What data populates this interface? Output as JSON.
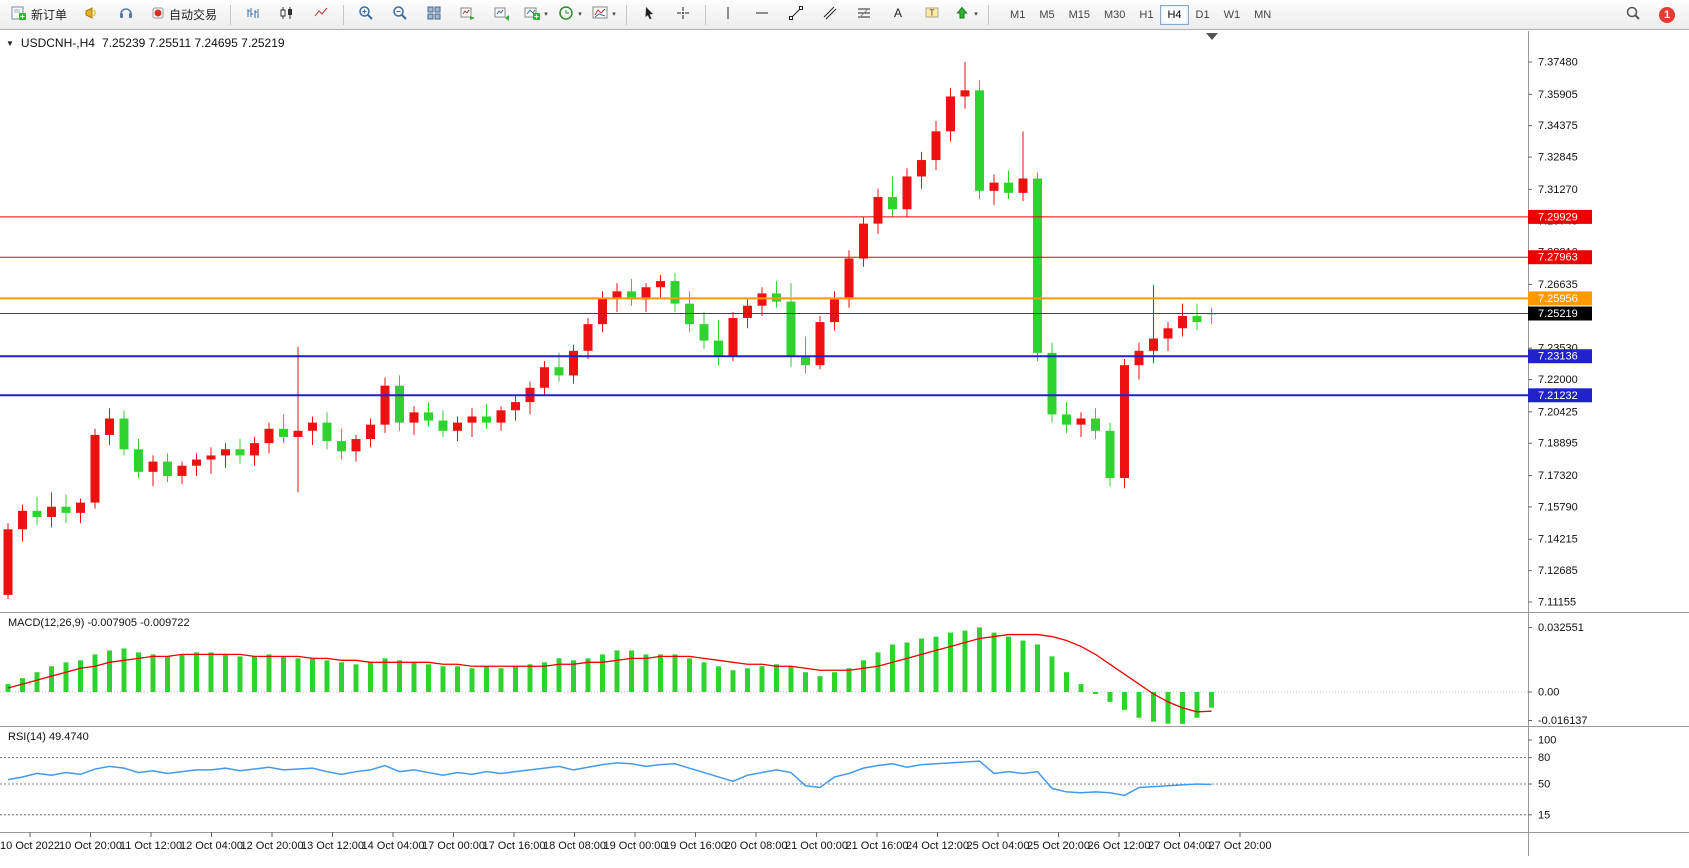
{
  "glyphs": {
    "caret": "▾",
    "one_click_arrow": "▼"
  },
  "toolbar": {
    "new_order_label": "新订单",
    "autotrading_label": "自动交易",
    "timeframes": [
      "M1",
      "M5",
      "M15",
      "M30",
      "H1",
      "H4",
      "D1",
      "W1",
      "MN"
    ],
    "active_timeframe": "H4",
    "notification_badge": "1"
  },
  "chart_window": {
    "title": "USDCNH-,H4",
    "ohlc_text": "7.25239 7.25511 7.24695 7.25219"
  },
  "chart_data": {
    "type": "candlestick",
    "symbol": "USDCNH-",
    "period": "H4",
    "ohlc_current": {
      "open": 7.25239,
      "high": 7.25511,
      "low": 7.24695,
      "close": 7.25219
    },
    "y_range": [
      7.11155,
      7.3748
    ],
    "up_color": "#ee1111",
    "down_color": "#2fd32f",
    "price_axis_labels": [
      "7.37480",
      "7.35905",
      "7.34375",
      "7.32845",
      "7.31270",
      "7.29740",
      "7.28210",
      "7.26635",
      "7.25105",
      "7.23530",
      "7.22000",
      "7.20425",
      "7.18895",
      "7.17320",
      "7.15790",
      "7.14215",
      "7.12685",
      "7.11155"
    ],
    "candles": [
      [
        7.115,
        7.15,
        7.113,
        7.147
      ],
      [
        7.147,
        7.159,
        7.141,
        7.156
      ],
      [
        7.156,
        7.163,
        7.149,
        7.153
      ],
      [
        7.153,
        7.165,
        7.148,
        7.158
      ],
      [
        7.158,
        7.164,
        7.15,
        7.155
      ],
      [
        7.155,
        7.162,
        7.15,
        7.16
      ],
      [
        7.16,
        7.196,
        7.157,
        7.193
      ],
      [
        7.193,
        7.206,
        7.188,
        7.201
      ],
      [
        7.201,
        7.205,
        7.183,
        7.186
      ],
      [
        7.186,
        7.191,
        7.172,
        7.175
      ],
      [
        7.175,
        7.183,
        7.168,
        7.18
      ],
      [
        7.18,
        7.184,
        7.17,
        7.173
      ],
      [
        7.173,
        7.18,
        7.169,
        7.178
      ],
      [
        7.178,
        7.184,
        7.173,
        7.181
      ],
      [
        7.181,
        7.187,
        7.174,
        7.183
      ],
      [
        7.183,
        7.189,
        7.177,
        7.186
      ],
      [
        7.186,
        7.191,
        7.179,
        7.183
      ],
      [
        7.183,
        7.192,
        7.178,
        7.189
      ],
      [
        7.189,
        7.199,
        7.184,
        7.196
      ],
      [
        7.196,
        7.203,
        7.189,
        7.192
      ],
      [
        7.192,
        7.236,
        7.165,
        7.195
      ],
      [
        7.195,
        7.202,
        7.188,
        7.199
      ],
      [
        7.199,
        7.204,
        7.186,
        7.19
      ],
      [
        7.19,
        7.196,
        7.181,
        7.185
      ],
      [
        7.185,
        7.193,
        7.18,
        7.191
      ],
      [
        7.191,
        7.201,
        7.187,
        7.198
      ],
      [
        7.198,
        7.221,
        7.194,
        7.217
      ],
      [
        7.217,
        7.222,
        7.195,
        7.199
      ],
      [
        7.199,
        7.207,
        7.193,
        7.204
      ],
      [
        7.204,
        7.209,
        7.197,
        7.2
      ],
      [
        7.2,
        7.205,
        7.192,
        7.195
      ],
      [
        7.195,
        7.202,
        7.19,
        7.199
      ],
      [
        7.199,
        7.206,
        7.192,
        7.202
      ],
      [
        7.202,
        7.208,
        7.196,
        7.199
      ],
      [
        7.199,
        7.207,
        7.195,
        7.205
      ],
      [
        7.205,
        7.212,
        7.2,
        7.209
      ],
      [
        7.209,
        7.219,
        7.203,
        7.216
      ],
      [
        7.216,
        7.229,
        7.212,
        7.226
      ],
      [
        7.226,
        7.233,
        7.219,
        7.222
      ],
      [
        7.222,
        7.237,
        7.218,
        7.234
      ],
      [
        7.234,
        7.25,
        7.23,
        7.247
      ],
      [
        7.247,
        7.263,
        7.243,
        7.26
      ],
      [
        7.26,
        7.267,
        7.253,
        7.263
      ],
      [
        7.263,
        7.269,
        7.256,
        7.259
      ],
      [
        7.259,
        7.267,
        7.253,
        7.265
      ],
      [
        7.265,
        7.271,
        7.259,
        7.268
      ],
      [
        7.268,
        7.272,
        7.253,
        7.257
      ],
      [
        7.257,
        7.263,
        7.243,
        7.247
      ],
      [
        7.247,
        7.253,
        7.235,
        7.239
      ],
      [
        7.239,
        7.249,
        7.227,
        7.231
      ],
      [
        7.231,
        7.253,
        7.229,
        7.25
      ],
      [
        7.25,
        7.259,
        7.245,
        7.256
      ],
      [
        7.256,
        7.265,
        7.251,
        7.262
      ],
      [
        7.262,
        7.268,
        7.255,
        7.258
      ],
      [
        7.258,
        7.267,
        7.226,
        7.231
      ],
      [
        7.231,
        7.241,
        7.223,
        7.227
      ],
      [
        7.227,
        7.251,
        7.225,
        7.248
      ],
      [
        7.248,
        7.263,
        7.244,
        7.259
      ],
      [
        7.259,
        7.283,
        7.255,
        7.279
      ],
      [
        7.279,
        7.299,
        7.275,
        7.296
      ],
      [
        7.296,
        7.313,
        7.291,
        7.309
      ],
      [
        7.309,
        7.319,
        7.299,
        7.303
      ],
      [
        7.303,
        7.323,
        7.299,
        7.319
      ],
      [
        7.319,
        7.331,
        7.313,
        7.327
      ],
      [
        7.327,
        7.346,
        7.322,
        7.341
      ],
      [
        7.341,
        7.362,
        7.336,
        7.358
      ],
      [
        7.358,
        7.3748,
        7.352,
        7.361
      ],
      [
        7.361,
        7.366,
        7.308,
        7.312
      ],
      [
        7.312,
        7.32,
        7.305,
        7.316
      ],
      [
        7.316,
        7.322,
        7.308,
        7.311
      ],
      [
        7.311,
        7.341,
        7.307,
        7.318
      ],
      [
        7.318,
        7.321,
        7.229,
        7.233
      ],
      [
        7.233,
        7.238,
        7.199,
        7.203
      ],
      [
        7.203,
        7.209,
        7.194,
        7.198
      ],
      [
        7.198,
        7.204,
        7.192,
        7.201
      ],
      [
        7.201,
        7.206,
        7.191,
        7.195
      ],
      [
        7.195,
        7.199,
        7.168,
        7.172
      ],
      [
        7.172,
        7.23,
        7.167,
        7.227
      ],
      [
        7.227,
        7.238,
        7.22,
        7.234
      ],
      [
        7.234,
        7.266,
        7.228,
        7.24
      ],
      [
        7.24,
        7.248,
        7.234,
        7.245
      ],
      [
        7.245,
        7.257,
        7.241,
        7.251
      ],
      [
        7.251,
        7.257,
        7.244,
        7.248
      ],
      [
        7.25239,
        7.25511,
        7.24695,
        7.25219
      ]
    ],
    "levels": [
      {
        "label": "7.29929",
        "price": 7.29929,
        "color": "#ee0000",
        "width": 1
      },
      {
        "label": "7.27963",
        "price": 7.27963,
        "color": "#ee0000",
        "width": 1
      },
      {
        "label": "7.25956",
        "price": 7.25956,
        "color": "#ff9900",
        "width": 2
      },
      {
        "label": "7.23136",
        "price": 7.23136,
        "color": "#2222cc",
        "width": 2
      },
      {
        "label": "7.21232",
        "price": 7.21232,
        "color": "#2222cc",
        "width": 2
      }
    ],
    "current_price": {
      "label": "7.25219",
      "value": 7.25219,
      "box_color": "#000000"
    },
    "time_labels": [
      "10 Oct 2022",
      "10 Oct 20:00",
      "11 Oct 12:00",
      "12 Oct 04:00",
      "12 Oct 20:00",
      "13 Oct 12:00",
      "14 Oct 04:00",
      "17 Oct 00:00",
      "17 Oct 16:00",
      "18 Oct 08:00",
      "19 Oct 00:00",
      "19 Oct 16:00",
      "20 Oct 08:00",
      "21 Oct 00:00",
      "21 Oct 16:00",
      "24 Oct 12:00",
      "25 Oct 04:00",
      "25 Oct 20:00",
      "26 Oct 12:00",
      "27 Oct 04:00",
      "27 Oct 20:00"
    ],
    "indicators": [
      {
        "name": "macd",
        "label": "MACD(12,26,9) -0.007905 -0.009722",
        "axis_labels": [
          "0.032551",
          "0.00",
          "-0.016137"
        ],
        "hist_color": "#2fd32f",
        "signal_color": "#ee0000",
        "histogram": [
          0.004,
          0.007,
          0.01,
          0.013,
          0.015,
          0.016,
          0.019,
          0.021,
          0.022,
          0.02,
          0.019,
          0.018,
          0.019,
          0.02,
          0.02,
          0.019,
          0.018,
          0.018,
          0.019,
          0.018,
          0.017,
          0.017,
          0.016,
          0.015,
          0.014,
          0.015,
          0.017,
          0.016,
          0.015,
          0.014,
          0.013,
          0.013,
          0.012,
          0.013,
          0.012,
          0.013,
          0.014,
          0.015,
          0.017,
          0.016,
          0.017,
          0.019,
          0.021,
          0.021,
          0.019,
          0.019,
          0.019,
          0.017,
          0.015,
          0.013,
          0.011,
          0.012,
          0.013,
          0.014,
          0.013,
          0.01,
          0.008,
          0.01,
          0.012,
          0.016,
          0.02,
          0.024,
          0.025,
          0.027,
          0.028,
          0.03,
          0.031,
          0.0326,
          0.03,
          0.028,
          0.026,
          0.024,
          0.018,
          0.01,
          0.004,
          -0.001,
          -0.005,
          -0.009,
          -0.013,
          -0.015,
          -0.016,
          -0.0161,
          -0.013,
          -0.0079
        ],
        "signal": [
          0.002,
          0.004,
          0.006,
          0.008,
          0.01,
          0.012,
          0.013,
          0.015,
          0.016,
          0.017,
          0.018,
          0.018,
          0.019,
          0.019,
          0.019,
          0.019,
          0.019,
          0.018,
          0.018,
          0.018,
          0.018,
          0.017,
          0.017,
          0.016,
          0.016,
          0.015,
          0.015,
          0.015,
          0.015,
          0.015,
          0.014,
          0.014,
          0.013,
          0.013,
          0.013,
          0.013,
          0.013,
          0.013,
          0.014,
          0.014,
          0.015,
          0.015,
          0.016,
          0.017,
          0.017,
          0.018,
          0.018,
          0.018,
          0.017,
          0.016,
          0.015,
          0.014,
          0.014,
          0.013,
          0.013,
          0.012,
          0.011,
          0.011,
          0.011,
          0.012,
          0.013,
          0.015,
          0.017,
          0.019,
          0.021,
          0.023,
          0.025,
          0.027,
          0.028,
          0.029,
          0.029,
          0.029,
          0.028,
          0.026,
          0.023,
          0.019,
          0.014,
          0.009,
          0.004,
          -0.001,
          -0.005,
          -0.008,
          -0.01,
          -0.0097
        ]
      },
      {
        "name": "rsi",
        "label": "RSI(14) 49.4740",
        "axis_labels": [
          "100",
          "80",
          "50",
          "15"
        ],
        "level_lines": [
          80,
          50,
          15
        ],
        "color": "#4499ee",
        "range": [
          0,
          100
        ],
        "values": [
          55,
          58,
          62,
          60,
          63,
          61,
          67,
          70,
          68,
          63,
          65,
          62,
          64,
          66,
          66,
          68,
          65,
          67,
          69,
          66,
          67,
          68,
          64,
          61,
          64,
          66,
          71,
          64,
          66,
          63,
          60,
          63,
          61,
          64,
          62,
          64,
          66,
          68,
          70,
          66,
          69,
          72,
          74,
          73,
          70,
          72,
          73,
          68,
          63,
          58,
          53,
          60,
          63,
          66,
          63,
          48,
          46,
          58,
          62,
          68,
          71,
          73,
          69,
          72,
          73,
          74,
          75,
          76,
          62,
          64,
          62,
          64,
          45,
          41,
          40,
          41,
          40,
          37,
          46,
          47,
          48,
          49,
          50,
          49.474
        ]
      }
    ]
  }
}
